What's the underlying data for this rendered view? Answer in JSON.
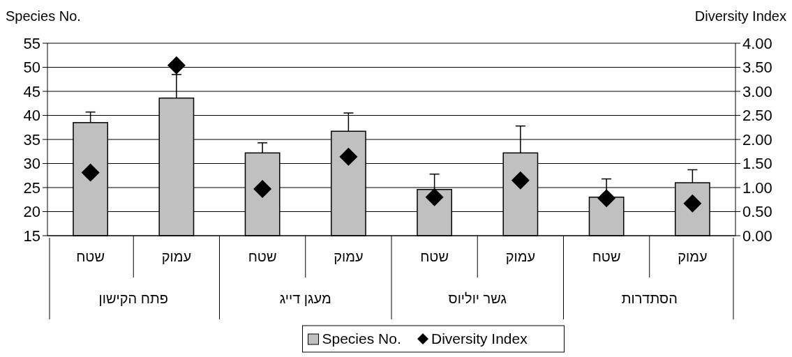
{
  "chart_data": {
    "type": "bar",
    "ylabel": "Species No.",
    "y2label": "Diversity Index",
    "categories": [
      "שטח",
      "עמוק",
      "שטח",
      "עמוק",
      "שטח",
      "עמוק",
      "שטח",
      "עמוק"
    ],
    "annotations": [
      "פתח הקישון",
      "מעגן דייג",
      "גשר יוליוס",
      "הסתדרות"
    ],
    "series": [
      {
        "name": "Species No.",
        "color": "#c0c0c0",
        "values": [
          38.5,
          43.6,
          32.2,
          36.7,
          24.6,
          32.2,
          23.0,
          26.0
        ],
        "errors": [
          [
            38.5,
            40.7
          ],
          [
            43.6,
            48.5
          ],
          [
            32.2,
            34.3
          ],
          [
            36.7,
            40.5
          ],
          [
            24.6,
            27.8
          ],
          [
            32.2,
            37.8
          ],
          [
            23.0,
            26.8
          ],
          [
            26.0,
            28.7
          ]
        ]
      },
      {
        "name": "Diversity Index",
        "type": "scatter",
        "axis": "y2",
        "marker": "diamond",
        "color": "#000000",
        "values": [
          1.31,
          3.54,
          0.97,
          1.64,
          0.8,
          1.15,
          0.78,
          0.67
        ]
      }
    ],
    "ylim": [
      15,
      55
    ],
    "yticks": [
      15,
      20,
      25,
      30,
      35,
      40,
      45,
      50,
      55
    ],
    "y2lim": [
      0,
      4
    ],
    "y2ticks": [
      {
        "value": 0,
        "label": "0.00"
      },
      {
        "value": 0.5,
        "label": "0.50"
      },
      {
        "value": 1,
        "label": "1.00"
      },
      {
        "value": 1.5,
        "label": "1.50"
      },
      {
        "value": 2,
        "label": "2.00"
      },
      {
        "value": 2.5,
        "label": "2.50"
      },
      {
        "value": 3,
        "label": "3.00"
      },
      {
        "value": 3.5,
        "label": "3.50"
      },
      {
        "value": 4,
        "label": "4.00"
      }
    ],
    "grid": "y",
    "legend": "bottom"
  }
}
